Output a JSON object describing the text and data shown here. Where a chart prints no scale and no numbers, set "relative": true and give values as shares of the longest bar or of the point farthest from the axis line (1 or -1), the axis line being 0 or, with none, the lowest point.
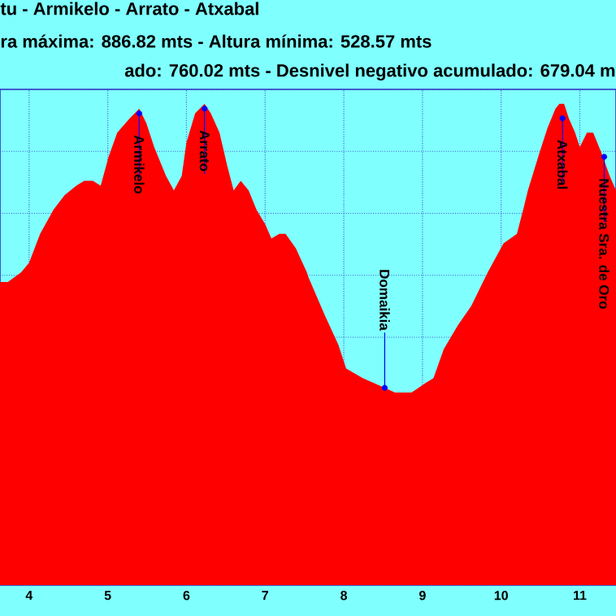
{
  "chart_data": {
    "type": "area",
    "title": "tu - Armikelo - Arrato - Atxabal",
    "subtitle": "ra máxima: 886.82 mts - Altura mínima: 528.57 mts",
    "annotations": [
      "ado: 760.02 mts - Desnivel negativo acumulado: 679.04 m",
      {
        "text": "Armikelo",
        "x": 5.4,
        "y": 0.98
      },
      {
        "text": "Arrato",
        "x": 6.23,
        "y": 0.99
      },
      {
        "text": "Domaikia",
        "x": 8.52,
        "y": 0.41
      },
      {
        "text": "Atxabal",
        "x": 10.78,
        "y": 0.97
      },
      {
        "text": "Nuestra Sra. de Oro",
        "x": 11.31,
        "y": 0.89
      }
    ],
    "relative": true,
    "color": "#ff0000",
    "grid": true,
    "xlim": [
      3.63,
      11.46
    ],
    "xticks": [
      4,
      5,
      6,
      7,
      8,
      9,
      10,
      11
    ],
    "x": [
      3.63,
      3.73,
      3.9,
      4.0,
      4.14,
      4.31,
      4.45,
      4.6,
      4.7,
      4.81,
      4.91,
      5.01,
      5.12,
      5.28,
      5.4,
      5.49,
      5.59,
      5.74,
      5.84,
      5.94,
      6.0,
      6.11,
      6.23,
      6.31,
      6.42,
      6.52,
      6.6,
      6.69,
      6.79,
      6.89,
      7.0,
      7.08,
      7.18,
      7.26,
      7.39,
      7.53,
      7.55,
      7.76,
      7.93,
      8.03,
      8.24,
      8.52,
      8.65,
      8.86,
      9.04,
      9.14,
      9.27,
      9.45,
      9.62,
      9.83,
      10.03,
      10.2,
      10.28,
      10.34,
      10.49,
      10.59,
      10.69,
      10.74,
      10.8,
      10.86,
      10.94,
      11.0,
      11.09,
      11.17,
      11.27,
      11.38,
      11.46
    ],
    "values": [
      0.63,
      0.63,
      0.65,
      0.67,
      0.73,
      0.78,
      0.81,
      0.83,
      0.84,
      0.84,
      0.83,
      0.89,
      0.94,
      0.97,
      0.99,
      0.96,
      0.91,
      0.85,
      0.82,
      0.85,
      0.92,
      0.98,
      1.0,
      0.98,
      0.94,
      0.87,
      0.82,
      0.84,
      0.82,
      0.78,
      0.75,
      0.72,
      0.73,
      0.73,
      0.7,
      0.65,
      0.64,
      0.56,
      0.5,
      0.45,
      0.43,
      0.41,
      0.4,
      0.4,
      0.42,
      0.43,
      0.49,
      0.54,
      0.58,
      0.65,
      0.71,
      0.73,
      0.78,
      0.82,
      0.9,
      0.95,
      0.99,
      1.0,
      1.0,
      0.97,
      0.94,
      0.91,
      0.94,
      0.94,
      0.9,
      0.85,
      0.82
    ]
  }
}
